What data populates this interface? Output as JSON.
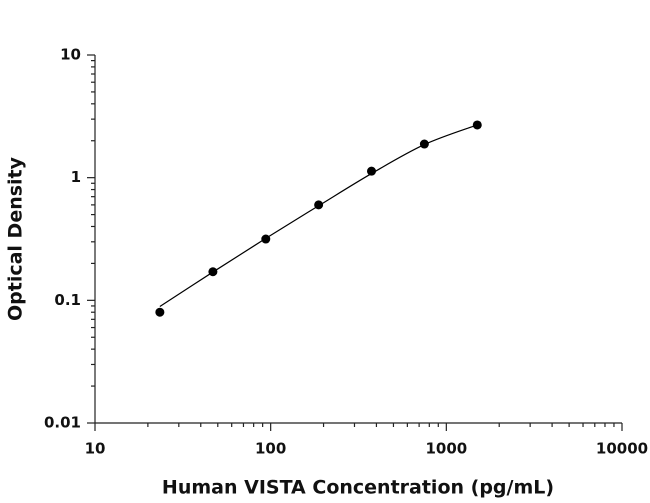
{
  "chart_data": {
    "type": "scatter",
    "x_label": "Human VISTA Concentration (pg/mL)",
    "y_label": "Optical Density",
    "x": [
      23.4,
      46.9,
      93.8,
      187.5,
      375,
      750,
      1500
    ],
    "series": [
      {
        "color": "#000000",
        "values": [
          0.08,
          0.171,
          0.316,
          0.6,
          1.13,
          1.88,
          2.69
        ]
      },
      {
        "color": "#000000",
        "line": true,
        "values": [
          0.089,
          0.17,
          0.32,
          0.59,
          1.08,
          1.86,
          2.69
        ]
      }
    ],
    "xlim": [
      10,
      10000
    ],
    "ylim": [
      0.01,
      10
    ],
    "xticks": [
      10,
      100,
      1000,
      10000
    ],
    "yticks": [
      0.01,
      0.1,
      1,
      10
    ],
    "xscale": "log",
    "yscale": "log",
    "grid": false
  }
}
